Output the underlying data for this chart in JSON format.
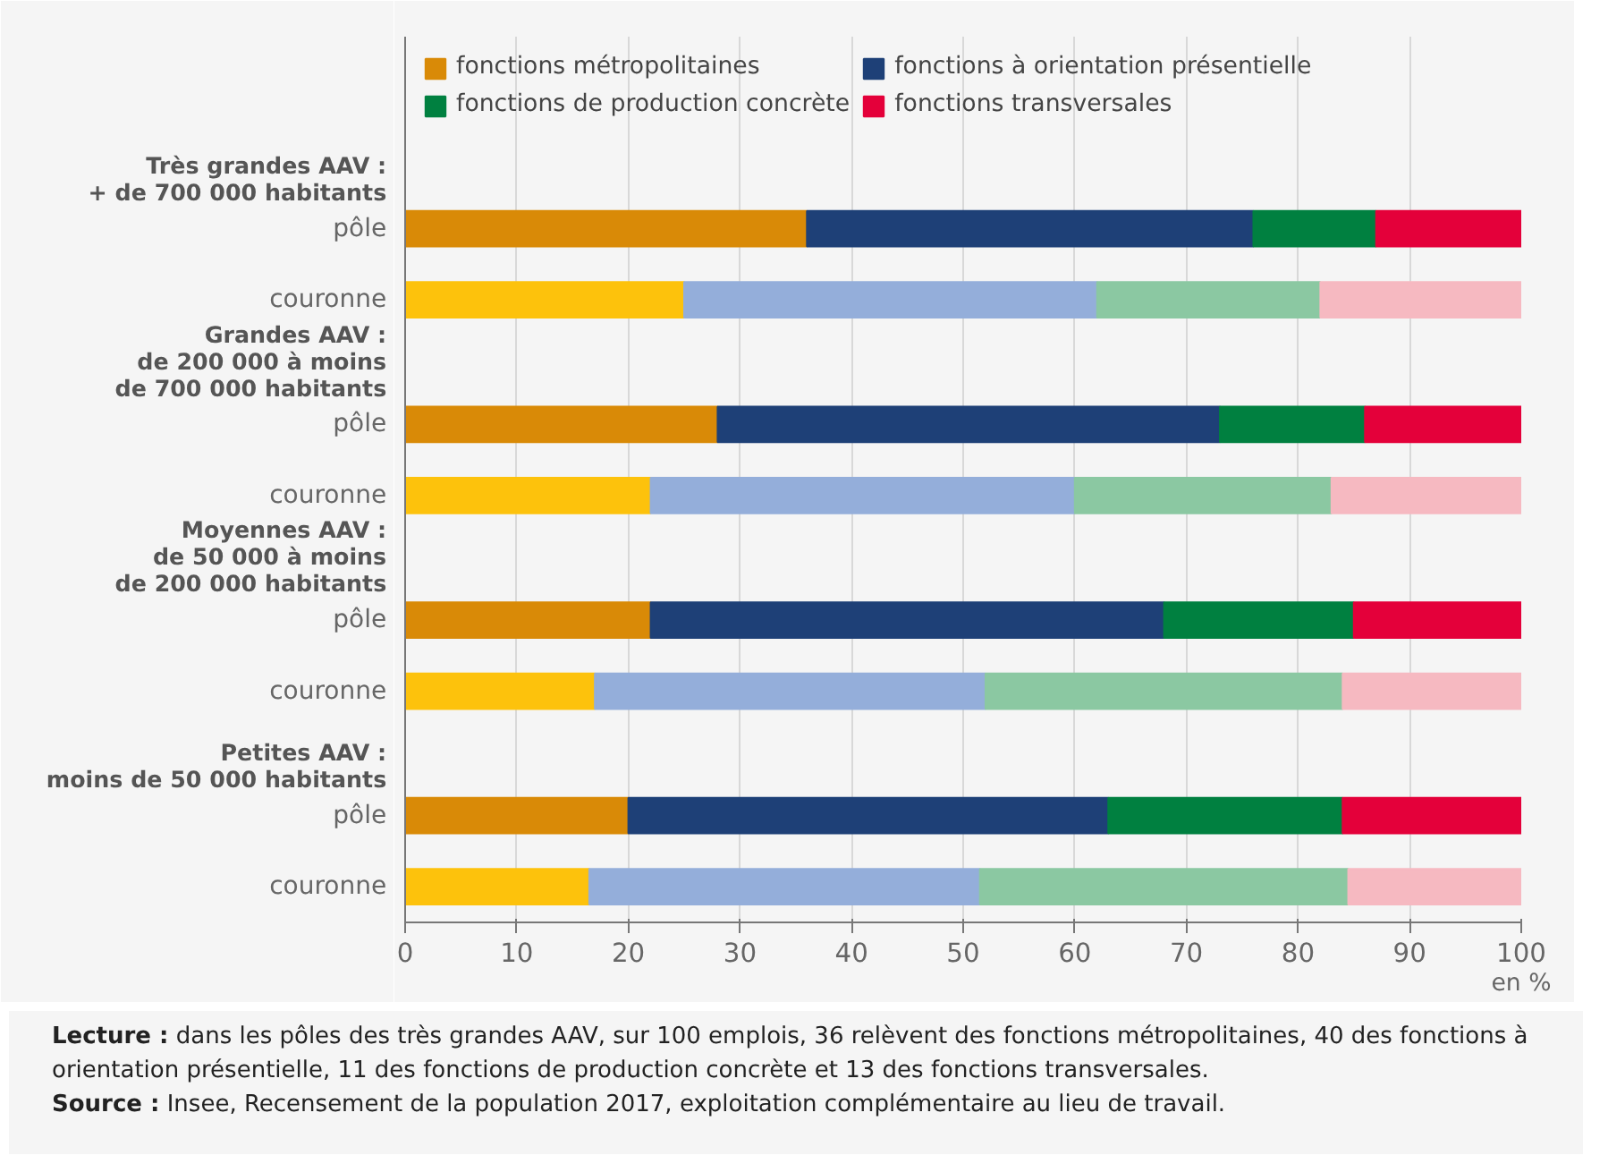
{
  "chart_data": {
    "type": "bar",
    "orientation": "horizontal",
    "stacked": true,
    "categories": [
      "pôle",
      "couronne",
      "pôle",
      "couronne",
      "pôle",
      "couronne",
      "pôle",
      "couronne"
    ],
    "series": [
      {
        "name": "fonctions métropolitaines",
        "colors": [
          "#d98a07",
          "#fdc20c",
          "#d98a07",
          "#fdc20c",
          "#d98a07",
          "#fdc20c",
          "#d98a07",
          "#fdc20c"
        ],
        "values": [
          36,
          25,
          28,
          22,
          22,
          17,
          20,
          16.5
        ]
      },
      {
        "name": "fonctions à orientation présentielle",
        "colors": [
          "#1e4077",
          "#94aeda",
          "#1e4077",
          "#94aeda",
          "#1e4077",
          "#94aeda",
          "#1e4077",
          "#94aeda"
        ],
        "values": [
          40,
          37,
          45,
          38,
          46,
          35,
          43,
          35
        ]
      },
      {
        "name": "fonctions de production concrète",
        "colors": [
          "#008040",
          "#8bc8a2",
          "#008040",
          "#8bc8a2",
          "#008040",
          "#8bc8a2",
          "#008040",
          "#8bc8a2"
        ],
        "values": [
          11,
          20,
          13,
          23,
          17,
          32,
          21,
          33
        ]
      },
      {
        "name": "fonctions transversales",
        "colors": [
          "#e4003a",
          "#f6b9c1",
          "#e4003a",
          "#f6b9c1",
          "#e4003a",
          "#f6b9c1",
          "#e4003a",
          "#f6b9c1"
        ],
        "values": [
          13,
          18,
          14,
          17,
          15,
          16,
          16,
          15.5
        ]
      }
    ],
    "xlabel": "en %",
    "xlim": [
      0,
      100
    ],
    "xticks": [
      0,
      10,
      20,
      30,
      40,
      50,
      60,
      70,
      80,
      90,
      100
    ],
    "grid": "x",
    "legend": "top",
    "annotations": [
      "Très grandes AAV :\n+ de 700 000 habitants",
      "Grandes AAV :\nde 200 000 à moins\nde 700 000 habitants",
      "Moyennes AAV :\nde 50 000 à moins\nde 200 000 habitants",
      "Petites AAV :\nmoins de 50 000 habitants",
      "Lecture : dans les pôles des très grandes AAV, sur 100 emplois, 36 relèvent des fonctions métropolitaines, 40 des fonctions à orientation présentielle, 11 des fonctions de production concrète et 13 des fonctions transversales.",
      "Source : Insee, Recensement de la population 2017, exploitation complémentaire au lieu de travail."
    ]
  }
}
